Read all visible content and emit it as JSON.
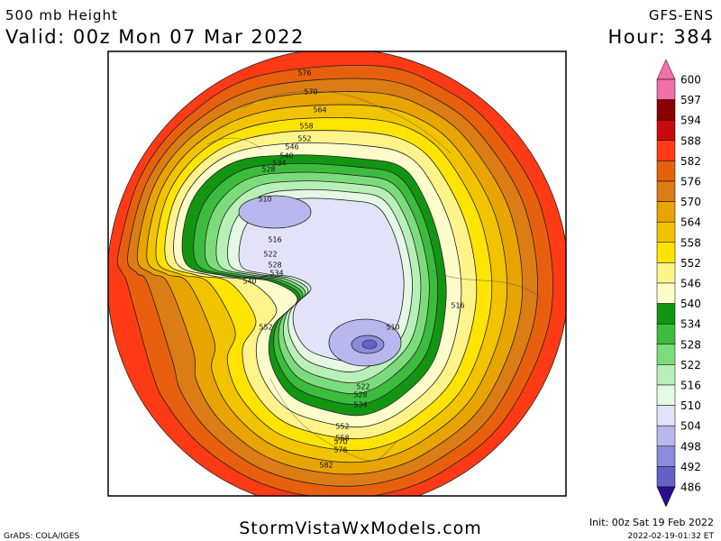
{
  "header": {
    "title": "500 mb Height",
    "valid": "Valid: 00z Mon 07 Mar 2022",
    "model": "GFS-ENS",
    "hour": "Hour: 384"
  },
  "footer": {
    "site": "StormVistaWxModels.com",
    "init": "Init: 00z Sat 19 Feb 2022",
    "credit": "GrADS: COLA/IGES",
    "timestamp": "2022-02-19-01:32 ET"
  },
  "legend": [
    {
      "value": 600,
      "color": "#f26fa8"
    },
    {
      "value": 597,
      "color": "#8b0000"
    },
    {
      "value": 594,
      "color": "#c80a0a"
    },
    {
      "value": 588,
      "color": "#ff3a14"
    },
    {
      "value": 582,
      "color": "#e8600e"
    },
    {
      "value": 576,
      "color": "#dc7c14"
    },
    {
      "value": 570,
      "color": "#e8a400"
    },
    {
      "value": 564,
      "color": "#f2c400"
    },
    {
      "value": 558,
      "color": "#ffe400"
    },
    {
      "value": 552,
      "color": "#fff48a"
    },
    {
      "value": 546,
      "color": "#fffccc"
    },
    {
      "value": 540,
      "color": "#129612"
    },
    {
      "value": 534,
      "color": "#3cbc3c"
    },
    {
      "value": 528,
      "color": "#7cdc7c"
    },
    {
      "value": 522,
      "color": "#b8f0b8"
    },
    {
      "value": 516,
      "color": "#e4f8e4"
    },
    {
      "value": 510,
      "color": "#e2e2f8"
    },
    {
      "value": 504,
      "color": "#b8b8ee"
    },
    {
      "value": 498,
      "color": "#8c8cdc"
    },
    {
      "value": 492,
      "color": "#6262c8"
    },
    {
      "value": 486,
      "color": "#2c0c8c"
    }
  ],
  "contour_labels": [
    576,
    570,
    564,
    558,
    552,
    546,
    540,
    534,
    528,
    510,
    516,
    522,
    528,
    534,
    540,
    552,
    516,
    510,
    522,
    528,
    534,
    552,
    558,
    570,
    576,
    582
  ]
}
